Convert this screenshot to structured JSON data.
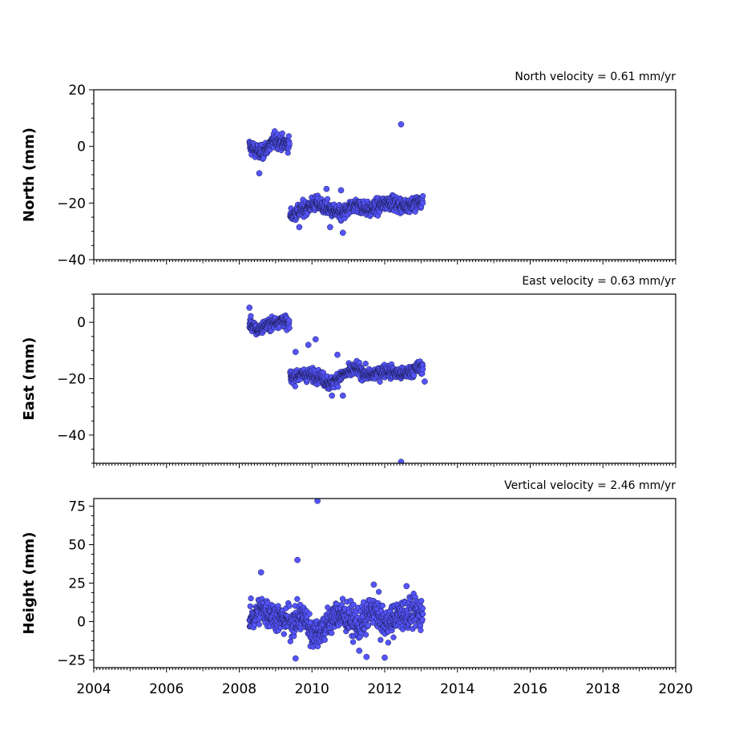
{
  "colors": {
    "marker_fill": "#5555ff",
    "marker_edge": "#1a1a4d",
    "axes": "#000000"
  },
  "chart_data": [
    {
      "type": "scatter",
      "velocity_label": "North velocity = 0.61 mm/yr",
      "ylabel": "North (mm)",
      "xlim": [
        2004,
        2020
      ],
      "ylim": [
        -40,
        20
      ],
      "yticks": [
        -40,
        -20,
        0,
        20
      ],
      "yticklabels": [
        "−40",
        "−20",
        "0",
        "20"
      ],
      "x_ticks_labeled": false,
      "segments": [
        {
          "x0": 2008.28,
          "x1": 2009.38,
          "mean": [
            [
              2008.28,
              0
            ],
            [
              2008.6,
              -2.5
            ],
            [
              2008.85,
              0.5
            ],
            [
              2009.0,
              2.5
            ],
            [
              2009.2,
              1
            ],
            [
              2009.38,
              1
            ]
          ],
          "noise": 1.8
        },
        {
          "x0": 2009.4,
          "x1": 2013.05,
          "mean": [
            [
              2009.4,
              -24.5
            ],
            [
              2009.8,
              -22
            ],
            [
              2010.1,
              -20
            ],
            [
              2010.45,
              -22
            ],
            [
              2010.8,
              -24
            ],
            [
              2011.2,
              -20.5
            ],
            [
              2011.6,
              -22.5
            ],
            [
              2012.1,
              -19.5
            ],
            [
              2012.5,
              -21
            ],
            [
              2013.05,
              -19.5
            ]
          ],
          "noise": 1.8
        }
      ],
      "outliers": [
        [
          2012.45,
          7.8
        ],
        [
          2008.55,
          -9.5
        ],
        [
          2010.85,
          -30.5
        ],
        [
          2010.5,
          -28.5
        ],
        [
          2009.65,
          -28.5
        ],
        [
          2010.8,
          -15.5
        ],
        [
          2010.4,
          -15
        ]
      ]
    },
    {
      "type": "scatter",
      "velocity_label": "East velocity = 0.63 mm/yr",
      "ylabel": "East (mm)",
      "xlim": [
        2004,
        2020
      ],
      "ylim": [
        -50,
        10
      ],
      "yticks": [
        -40,
        -20,
        0
      ],
      "yticklabels": [
        "−40",
        "−20",
        "0"
      ],
      "x_ticks_labeled": false,
      "segments": [
        {
          "x0": 2008.28,
          "x1": 2009.38,
          "mean": [
            [
              2008.28,
              0
            ],
            [
              2008.5,
              -3
            ],
            [
              2008.75,
              -1
            ],
            [
              2009.0,
              0
            ],
            [
              2009.2,
              1
            ],
            [
              2009.38,
              -1
            ]
          ],
          "noise": 1.5
        },
        {
          "x0": 2009.4,
          "x1": 2013.05,
          "mean": [
            [
              2009.4,
              -19.5
            ],
            [
              2009.8,
              -18.5
            ],
            [
              2010.2,
              -19
            ],
            [
              2010.5,
              -22
            ],
            [
              2010.8,
              -19
            ],
            [
              2011.2,
              -16.5
            ],
            [
              2011.6,
              -19
            ],
            [
              2012.0,
              -17
            ],
            [
              2012.5,
              -18.5
            ],
            [
              2013.05,
              -15.5
            ]
          ],
          "noise": 1.6
        }
      ],
      "outliers": [
        [
          2008.28,
          5.2
        ],
        [
          2012.45,
          -49.5
        ],
        [
          2009.55,
          -10.5
        ],
        [
          2009.9,
          -8
        ],
        [
          2010.1,
          -6
        ],
        [
          2010.7,
          -11.5
        ],
        [
          2013.1,
          -21
        ],
        [
          2010.55,
          -26
        ],
        [
          2010.85,
          -26
        ]
      ]
    },
    {
      "type": "scatter",
      "velocity_label": "Vertical velocity = 2.46 mm/yr",
      "ylabel": "Height (mm)",
      "xlim": [
        2004,
        2020
      ],
      "ylim": [
        -30,
        80
      ],
      "yticks": [
        -25,
        0,
        25,
        50,
        75
      ],
      "yticklabels": [
        "−25",
        "0",
        "25",
        "50",
        "75"
      ],
      "x_ticks_labeled": true,
      "xticks": [
        2004,
        2006,
        2008,
        2010,
        2012,
        2014,
        2016,
        2018,
        2020
      ],
      "xticklabels": [
        "2004",
        "2006",
        "2008",
        "2010",
        "2012",
        "2014",
        "2016",
        "2018",
        "2020"
      ],
      "segments": [
        {
          "x0": 2008.28,
          "x1": 2009.38,
          "mean": [
            [
              2008.28,
              0
            ],
            [
              2008.6,
              8
            ],
            [
              2008.9,
              5
            ],
            [
              2009.1,
              2
            ],
            [
              2009.38,
              0
            ]
          ],
          "noise": 6.5
        },
        {
          "x0": 2009.4,
          "x1": 2013.05,
          "mean": [
            [
              2009.4,
              0
            ],
            [
              2009.8,
              3
            ],
            [
              2010.0,
              -8
            ],
            [
              2010.3,
              -5
            ],
            [
              2010.7,
              5
            ],
            [
              2011.0,
              2
            ],
            [
              2011.3,
              -3
            ],
            [
              2011.7,
              8
            ],
            [
              2012.0,
              -2
            ],
            [
              2012.5,
              5
            ],
            [
              2013.05,
              6
            ]
          ],
          "noise": 7
        }
      ],
      "outliers": [
        [
          2010.15,
          78.5
        ],
        [
          2009.6,
          40
        ],
        [
          2008.6,
          32
        ],
        [
          2011.7,
          24
        ],
        [
          2012.6,
          23
        ],
        [
          2009.55,
          -24
        ],
        [
          2011.5,
          -23
        ],
        [
          2012.0,
          -23.5
        ],
        [
          2011.3,
          -19
        ]
      ]
    }
  ]
}
